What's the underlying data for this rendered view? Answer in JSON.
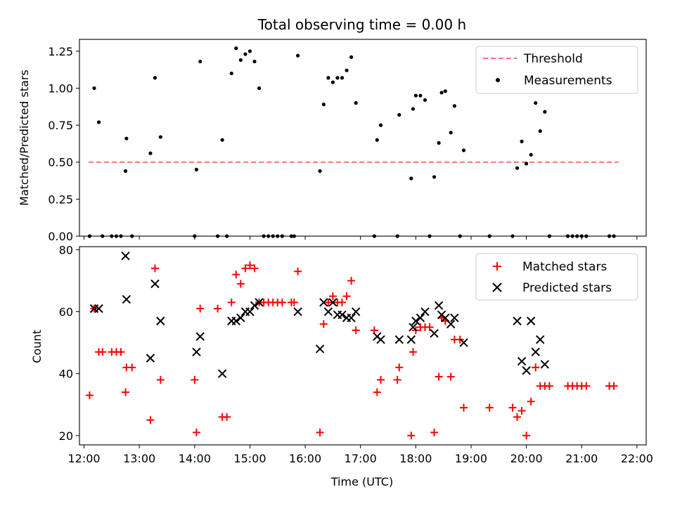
{
  "chart_data": [
    {
      "type": "scatter",
      "title": "Total observing time = 0.00 h",
      "ylabel": "Matched/Predicted stars",
      "xlabel": "",
      "xlim": [
        "11:55",
        "22:10"
      ],
      "ylim": [
        0,
        1.33
      ],
      "yticks": [
        0.0,
        0.25,
        0.5,
        0.75,
        1.0,
        1.25
      ],
      "ytick_labels": [
        "0.00",
        "0.25",
        "0.50",
        "0.75",
        "1.00",
        "1.25"
      ],
      "legend_position": "top-right",
      "threshold": {
        "name": "Threshold",
        "value": 0.5,
        "x_range": [
          "12:05",
          "21:40"
        ],
        "color": "#ff7070"
      },
      "series": [
        {
          "name": "Measurements",
          "marker": "dot",
          "color": "#000000",
          "points": [
            [
              "12:06",
              0.0
            ],
            [
              "12:11",
              1.0
            ],
            [
              "12:16",
              0.77
            ],
            [
              "12:20",
              0.0
            ],
            [
              "12:30",
              0.0
            ],
            [
              "12:35",
              0.0
            ],
            [
              "12:40",
              0.0
            ],
            [
              "12:45",
              0.44
            ],
            [
              "12:46",
              0.66
            ],
            [
              "12:52",
              0.0
            ],
            [
              "13:12",
              0.56
            ],
            [
              "13:17",
              1.07
            ],
            [
              "13:23",
              0.67
            ],
            [
              "14:00",
              0.0
            ],
            [
              "14:02",
              0.45
            ],
            [
              "14:06",
              1.18
            ],
            [
              "14:25",
              0.0
            ],
            [
              "14:30",
              0.65
            ],
            [
              "14:35",
              0.0
            ],
            [
              "14:40",
              1.1
            ],
            [
              "14:45",
              1.27
            ],
            [
              "14:50",
              1.19
            ],
            [
              "14:55",
              1.23
            ],
            [
              "15:00",
              1.25
            ],
            [
              "15:05",
              1.18
            ],
            [
              "15:10",
              1.0
            ],
            [
              "15:15",
              0.0
            ],
            [
              "15:20",
              0.0
            ],
            [
              "15:25",
              0.0
            ],
            [
              "15:30",
              0.0
            ],
            [
              "15:35",
              0.0
            ],
            [
              "15:45",
              0.0
            ],
            [
              "15:48",
              0.0
            ],
            [
              "15:52",
              1.22
            ],
            [
              "16:16",
              0.44
            ],
            [
              "16:20",
              0.89
            ],
            [
              "16:25",
              1.07
            ],
            [
              "16:30",
              1.04
            ],
            [
              "16:35",
              1.07
            ],
            [
              "16:40",
              1.07
            ],
            [
              "16:45",
              1.12
            ],
            [
              "16:50",
              1.21
            ],
            [
              "16:55",
              0.9
            ],
            [
              "17:15",
              0.0
            ],
            [
              "17:18",
              0.65
            ],
            [
              "17:22",
              0.75
            ],
            [
              "17:40",
              0.0
            ],
            [
              "17:42",
              0.82
            ],
            [
              "17:55",
              0.39
            ],
            [
              "17:57",
              0.86
            ],
            [
              "18:00",
              0.95
            ],
            [
              "18:05",
              0.95
            ],
            [
              "18:10",
              0.92
            ],
            [
              "18:15",
              0.0
            ],
            [
              "18:20",
              0.4
            ],
            [
              "18:25",
              0.63
            ],
            [
              "18:28",
              0.97
            ],
            [
              "18:32",
              0.98
            ],
            [
              "18:38",
              0.7
            ],
            [
              "18:42",
              0.88
            ],
            [
              "18:48",
              0.0
            ],
            [
              "18:52",
              0.58
            ],
            [
              "19:20",
              0.0
            ],
            [
              "19:45",
              0.0
            ],
            [
              "19:50",
              0.46
            ],
            [
              "19:55",
              0.64
            ],
            [
              "20:00",
              0.49
            ],
            [
              "20:05",
              0.55
            ],
            [
              "20:10",
              0.9
            ],
            [
              "20:15",
              0.71
            ],
            [
              "20:20",
              0.84
            ],
            [
              "20:25",
              0.0
            ],
            [
              "20:45",
              0.0
            ],
            [
              "20:50",
              0.0
            ],
            [
              "20:55",
              0.0
            ],
            [
              "21:00",
              0.0
            ],
            [
              "21:05",
              0.0
            ],
            [
              "21:30",
              0.0
            ],
            [
              "21:35",
              0.0
            ]
          ]
        }
      ]
    },
    {
      "type": "scatter",
      "title": "",
      "xlabel": "Time (UTC)",
      "ylabel": "Count",
      "xlim": [
        "11:55",
        "22:10"
      ],
      "ylim": [
        17,
        81
      ],
      "xticks": [
        "12:00",
        "13:00",
        "14:00",
        "15:00",
        "16:00",
        "17:00",
        "18:00",
        "19:00",
        "20:00",
        "21:00",
        "22:00"
      ],
      "yticks": [
        20,
        40,
        60,
        80
      ],
      "ytick_labels": [
        "20",
        "40",
        "60",
        "80"
      ],
      "legend_position": "top-right",
      "series": [
        {
          "name": "Matched stars",
          "marker": "plus",
          "color": "#ff0000",
          "points": [
            [
              "12:06",
              33
            ],
            [
              "12:11",
              61
            ],
            [
              "12:16",
              47
            ],
            [
              "12:20",
              47
            ],
            [
              "12:30",
              47
            ],
            [
              "12:35",
              47
            ],
            [
              "12:40",
              47
            ],
            [
              "12:45",
              34
            ],
            [
              "12:46",
              42
            ],
            [
              "12:52",
              42
            ],
            [
              "13:12",
              25
            ],
            [
              "13:17",
              74
            ],
            [
              "13:23",
              38
            ],
            [
              "14:00",
              38
            ],
            [
              "14:02",
              21
            ],
            [
              "14:06",
              61
            ],
            [
              "14:25",
              61
            ],
            [
              "14:30",
              26
            ],
            [
              "14:35",
              26
            ],
            [
              "14:40",
              63
            ],
            [
              "14:45",
              72
            ],
            [
              "14:50",
              69
            ],
            [
              "14:55",
              74
            ],
            [
              "15:00",
              75
            ],
            [
              "15:05",
              74
            ],
            [
              "15:10",
              63
            ],
            [
              "15:15",
              63
            ],
            [
              "15:20",
              63
            ],
            [
              "15:25",
              63
            ],
            [
              "15:30",
              63
            ],
            [
              "15:35",
              63
            ],
            [
              "15:45",
              63
            ],
            [
              "15:48",
              63
            ],
            [
              "15:52",
              73
            ],
            [
              "16:16",
              21
            ],
            [
              "16:20",
              56
            ],
            [
              "16:25",
              63
            ],
            [
              "16:30",
              65
            ],
            [
              "16:35",
              63
            ],
            [
              "16:40",
              63
            ],
            [
              "16:45",
              65
            ],
            [
              "16:50",
              70
            ],
            [
              "16:55",
              54
            ],
            [
              "17:15",
              54
            ],
            [
              "17:18",
              34
            ],
            [
              "17:22",
              38
            ],
            [
              "17:40",
              38
            ],
            [
              "17:42",
              42
            ],
            [
              "17:55",
              20
            ],
            [
              "17:57",
              47
            ],
            [
              "18:00",
              54
            ],
            [
              "18:05",
              55
            ],
            [
              "18:10",
              55
            ],
            [
              "18:15",
              55
            ],
            [
              "18:20",
              21
            ],
            [
              "18:25",
              39
            ],
            [
              "18:28",
              58
            ],
            [
              "18:32",
              57
            ],
            [
              "18:38",
              39
            ],
            [
              "18:42",
              51
            ],
            [
              "18:48",
              51
            ],
            [
              "18:52",
              29
            ],
            [
              "19:20",
              29
            ],
            [
              "19:45",
              29
            ],
            [
              "19:50",
              26
            ],
            [
              "19:55",
              28
            ],
            [
              "20:00",
              20
            ],
            [
              "20:05",
              31
            ],
            [
              "20:10",
              42
            ],
            [
              "20:15",
              36
            ],
            [
              "20:20",
              36
            ],
            [
              "20:25",
              36
            ],
            [
              "20:45",
              36
            ],
            [
              "20:50",
              36
            ],
            [
              "20:55",
              36
            ],
            [
              "21:00",
              36
            ],
            [
              "21:05",
              36
            ],
            [
              "21:30",
              36
            ],
            [
              "21:35",
              36
            ]
          ]
        },
        {
          "name": "Predicted stars",
          "marker": "x",
          "color": "#000000",
          "points": [
            [
              "12:11",
              61
            ],
            [
              "12:16",
              61
            ],
            [
              "12:45",
              78
            ],
            [
              "12:46",
              64
            ],
            [
              "13:12",
              45
            ],
            [
              "13:17",
              69
            ],
            [
              "13:23",
              57
            ],
            [
              "14:02",
              47
            ],
            [
              "14:06",
              52
            ],
            [
              "14:30",
              40
            ],
            [
              "14:40",
              57
            ],
            [
              "14:45",
              57
            ],
            [
              "14:50",
              58
            ],
            [
              "14:55",
              60
            ],
            [
              "15:00",
              60
            ],
            [
              "15:05",
              62
            ],
            [
              "15:10",
              63
            ],
            [
              "15:52",
              60
            ],
            [
              "16:16",
              48
            ],
            [
              "16:20",
              63
            ],
            [
              "16:25",
              60
            ],
            [
              "16:30",
              63
            ],
            [
              "16:35",
              59
            ],
            [
              "16:40",
              59
            ],
            [
              "16:45",
              58
            ],
            [
              "16:50",
              58
            ],
            [
              "16:55",
              60
            ],
            [
              "17:18",
              52
            ],
            [
              "17:22",
              51
            ],
            [
              "17:42",
              51
            ],
            [
              "17:55",
              51
            ],
            [
              "17:57",
              55
            ],
            [
              "18:00",
              57
            ],
            [
              "18:05",
              58
            ],
            [
              "18:10",
              60
            ],
            [
              "18:20",
              53
            ],
            [
              "18:25",
              62
            ],
            [
              "18:28",
              59
            ],
            [
              "18:32",
              58
            ],
            [
              "18:38",
              56
            ],
            [
              "18:42",
              58
            ],
            [
              "18:52",
              50
            ],
            [
              "19:50",
              57
            ],
            [
              "19:55",
              44
            ],
            [
              "20:00",
              41
            ],
            [
              "20:05",
              57
            ],
            [
              "20:10",
              47
            ],
            [
              "20:15",
              51
            ],
            [
              "20:20",
              43
            ]
          ]
        }
      ]
    }
  ]
}
